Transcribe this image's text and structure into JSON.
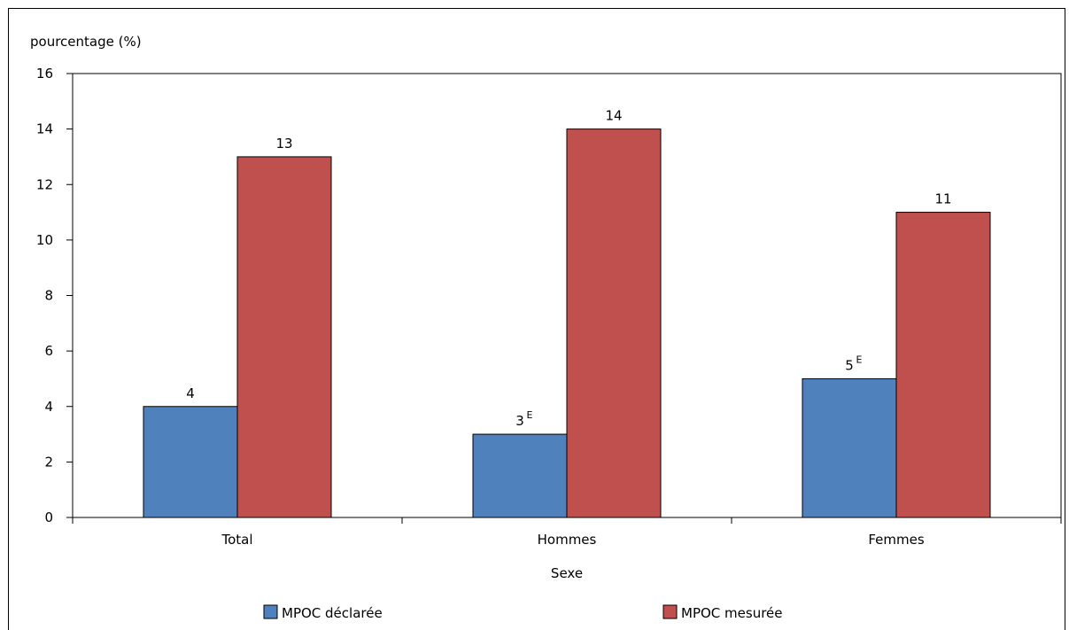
{
  "chart_data": {
    "type": "bar",
    "ylabel": "pourcentage (%)",
    "xlabel": "Sexe",
    "categories": [
      "Total",
      "Hommes",
      "Femmes"
    ],
    "ylim": [
      0,
      16
    ],
    "yticks": [
      0,
      2,
      4,
      6,
      8,
      10,
      12,
      14,
      16
    ],
    "grid": false,
    "legend_position": "bottom",
    "series": [
      {
        "name": "MPOC déclarée",
        "color": "#4F81BD",
        "values": [
          4,
          3,
          5
        ],
        "labels": [
          "4",
          "3",
          "5"
        ],
        "flags": [
          "",
          "E",
          "E"
        ]
      },
      {
        "name": "MPOC mesurée",
        "color": "#C0504D",
        "values": [
          13,
          14,
          11
        ],
        "labels": [
          "13",
          "14",
          "11"
        ],
        "flags": [
          "",
          "",
          ""
        ]
      }
    ]
  }
}
